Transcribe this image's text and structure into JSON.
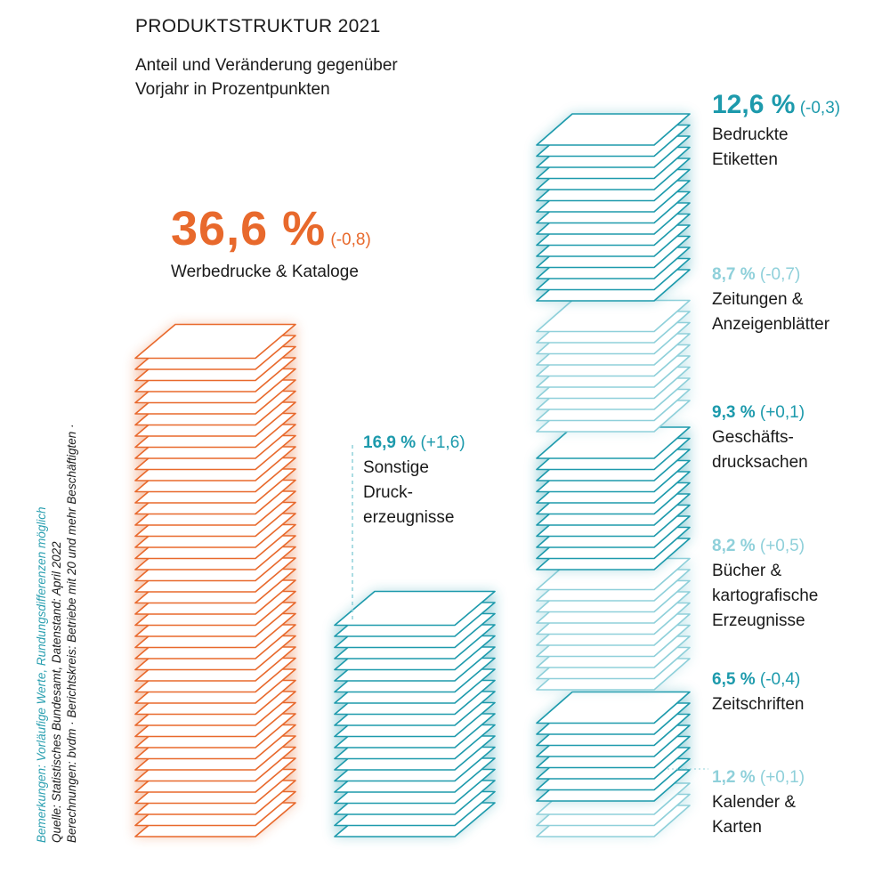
{
  "title": "PRODUKTSTRUKTUR 2021",
  "subtitle": "Anteil und Veränderung gegenüber Vorjahr in Prozentpunkten",
  "notes": {
    "line1": "Bemerkungen: Vorläufige Werte, Rundungsdifferenzen möglich",
    "line2": "Quelle: Statistisches Bundesamt, Datenstand: April 2022",
    "line3": "Berechnungen: bvdm · Berichtskreis: Betriebe mit 20 und mehr Beschäftigten ·"
  },
  "colors": {
    "orange": "#e8692c",
    "teal_dark": "#1d9aac",
    "teal_light": "#8fd0da",
    "text": "#1a1a1a"
  },
  "chart_data": {
    "type": "stacked-paper-infographic",
    "title": "PRODUKTSTRUKTUR 2021",
    "subtitle": "Anteil und Veränderung gegenüber Vorjahr in Prozentpunkten",
    "unit": "%",
    "categories": [
      {
        "key": "werbe",
        "pct_label": "36,6 %",
        "change_label": "(-0,8)",
        "name_lines": [
          "Werbedrucke & Kataloge"
        ],
        "value": 36.6,
        "change": -0.8,
        "shade": "orange"
      },
      {
        "key": "sonstige",
        "pct_label": "16,9 %",
        "change_label": "(+1,6)",
        "name_lines": [
          "Sonstige",
          "Druck-",
          "erzeugnisse"
        ],
        "value": 16.9,
        "change": 1.6,
        "shade": "teal_dark"
      },
      {
        "key": "etiketten",
        "pct_label": "12,6 %",
        "change_label": "(-0,3)",
        "name_lines": [
          "Bedruckte",
          "Etiketten"
        ],
        "value": 12.6,
        "change": -0.3,
        "shade": "teal_dark"
      },
      {
        "key": "zeitungen",
        "pct_label": "8,7 %",
        "change_label": "(-0,7)",
        "name_lines": [
          "Zeitungen &",
          "Anzeigenblätter"
        ],
        "value": 8.7,
        "change": -0.7,
        "shade": "teal_light"
      },
      {
        "key": "geschaeft",
        "pct_label": "9,3 %",
        "change_label": "(+0,1)",
        "name_lines": [
          "Geschäfts-",
          "drucksachen"
        ],
        "value": 9.3,
        "change": 0.1,
        "shade": "teal_dark"
      },
      {
        "key": "buecher",
        "pct_label": "8,2 %",
        "change_label": "(+0,5)",
        "name_lines": [
          "Bücher &",
          "kartografische",
          "Erzeugnisse"
        ],
        "value": 8.2,
        "change": 0.5,
        "shade": "teal_light"
      },
      {
        "key": "zeitschriften",
        "pct_label": "6,5 %",
        "change_label": "(-0,4)",
        "name_lines": [
          "Zeitschriften"
        ],
        "value": 6.5,
        "change": -0.4,
        "shade": "teal_dark"
      },
      {
        "key": "kalender",
        "pct_label": "1,2 %",
        "change_label": "(+0,1)",
        "name_lines": [
          "Kalender &",
          "Karten"
        ],
        "value": 1.2,
        "change": 0.1,
        "shade": "teal_light"
      }
    ]
  }
}
